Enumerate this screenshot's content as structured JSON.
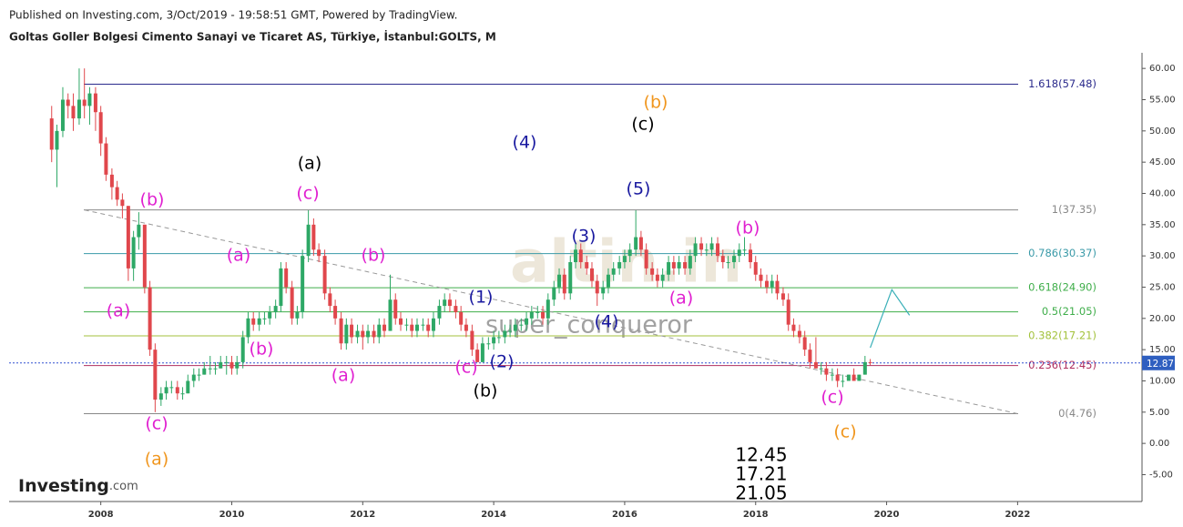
{
  "header": {
    "published": "Published on Investing.com, 3/Oct/2019 - 19:58:51 GMT, Powered by TradingView.",
    "instrument": "Goltas Goller Bolgesi Cimento Sanayi ve Ticaret AS, Türkiye, İstanbul:GOLTS, M"
  },
  "chart_data": {
    "type": "candlestick",
    "x": [
      2007.25,
      2007.33,
      2007.42,
      2007.5,
      2007.58,
      2007.67,
      2007.75,
      2007.83,
      2007.92,
      2008,
      2008.08,
      2008.17,
      2008.25,
      2008.33,
      2008.42,
      2008.5,
      2008.58,
      2008.67,
      2008.75,
      2008.83,
      2008.92,
      2009,
      2009.08,
      2009.17,
      2009.25,
      2009.33,
      2009.42,
      2009.5,
      2009.58,
      2009.67,
      2009.75,
      2009.83,
      2009.92,
      2010,
      2010.08,
      2010.17,
      2010.25,
      2010.33,
      2010.42,
      2010.5,
      2010.58,
      2010.67,
      2010.75,
      2010.83,
      2010.92,
      2011,
      2011.08,
      2011.17,
      2011.25,
      2011.33,
      2011.42,
      2011.5,
      2011.58,
      2011.67,
      2011.75,
      2011.83,
      2011.92,
      2012,
      2012.08,
      2012.17,
      2012.25,
      2012.33,
      2012.42,
      2012.5,
      2012.58,
      2012.67,
      2012.75,
      2012.83,
      2012.92,
      2013,
      2013.08,
      2013.17,
      2013.25,
      2013.33,
      2013.42,
      2013.5,
      2013.58,
      2013.67,
      2013.75,
      2013.83,
      2013.92,
      2014,
      2014.08,
      2014.17,
      2014.25,
      2014.33,
      2014.42,
      2014.5,
      2014.58,
      2014.67,
      2014.75,
      2014.83,
      2014.92,
      2015,
      2015.08,
      2015.17,
      2015.25,
      2015.33,
      2015.42,
      2015.5,
      2015.58,
      2015.67,
      2015.75,
      2015.83,
      2015.92,
      2016,
      2016.08,
      2016.17,
      2016.25,
      2016.33,
      2016.42,
      2016.5,
      2016.58,
      2016.67,
      2016.75,
      2016.83,
      2016.92,
      2017,
      2017.08,
      2017.17,
      2017.25,
      2017.33,
      2017.42,
      2017.5,
      2017.58,
      2017.67,
      2017.75,
      2017.83,
      2017.92,
      2018,
      2018.08,
      2018.17,
      2018.25,
      2018.33,
      2018.42,
      2018.5,
      2018.58,
      2018.67,
      2018.75,
      2018.83,
      2018.92,
      2019,
      2019.08,
      2019.17,
      2019.25,
      2019.33,
      2019.42,
      2019.5,
      2019.58,
      2019.67,
      2019.75
    ],
    "ohlc": [
      [
        52,
        54,
        45,
        47
      ],
      [
        47,
        51,
        41,
        50
      ],
      [
        50,
        57,
        49,
        55
      ],
      [
        55,
        56,
        52,
        54
      ],
      [
        54,
        56,
        50,
        52
      ],
      [
        52,
        60,
        51,
        55
      ],
      [
        55,
        60,
        52,
        54
      ],
      [
        54,
        57,
        51,
        56
      ],
      [
        56,
        57,
        50,
        53
      ],
      [
        53,
        54,
        46,
        48
      ],
      [
        48,
        49,
        42,
        43
      ],
      [
        43,
        44,
        39,
        41
      ],
      [
        41,
        42,
        38,
        39
      ],
      [
        39,
        40,
        36,
        38
      ],
      [
        38,
        38,
        26,
        28
      ],
      [
        28,
        34,
        26,
        33
      ],
      [
        33,
        37,
        31,
        35
      ],
      [
        35,
        35,
        24,
        25
      ],
      [
        25,
        26,
        14,
        15
      ],
      [
        15,
        16,
        5,
        7
      ],
      [
        7,
        9,
        6,
        8
      ],
      [
        8,
        10,
        7,
        9
      ],
      [
        9,
        10,
        8,
        9
      ],
      [
        9,
        10,
        7,
        8
      ],
      [
        8,
        9,
        7,
        8
      ],
      [
        8,
        11,
        8,
        10
      ],
      [
        10,
        12,
        9,
        11
      ],
      [
        11,
        12,
        10,
        11
      ],
      [
        11,
        13,
        11,
        12
      ],
      [
        12,
        14,
        11,
        12
      ],
      [
        12,
        13,
        11,
        12
      ],
      [
        12,
        14,
        12,
        13
      ],
      [
        13,
        14,
        11,
        13
      ],
      [
        13,
        14,
        11,
        12
      ],
      [
        12,
        14,
        11,
        13
      ],
      [
        13,
        18,
        12,
        17
      ],
      [
        17,
        21,
        16,
        20
      ],
      [
        20,
        21,
        18,
        19
      ],
      [
        19,
        21,
        18,
        20
      ],
      [
        20,
        21,
        19,
        20
      ],
      [
        20,
        22,
        19,
        21
      ],
      [
        21,
        23,
        20,
        22
      ],
      [
        22,
        29,
        21,
        28
      ],
      [
        28,
        29,
        24,
        25
      ],
      [
        25,
        26,
        19,
        20
      ],
      [
        20,
        22,
        19,
        21
      ],
      [
        21,
        31,
        20,
        30
      ],
      [
        30,
        37.3,
        29,
        35
      ],
      [
        35,
        36,
        30,
        31
      ],
      [
        31,
        32,
        29,
        30
      ],
      [
        30,
        31,
        23,
        24
      ],
      [
        24,
        25,
        21,
        22
      ],
      [
        22,
        23,
        19,
        20
      ],
      [
        20,
        21,
        15,
        16
      ],
      [
        16,
        20,
        15,
        19
      ],
      [
        19,
        20,
        16,
        17
      ],
      [
        17,
        19,
        16,
        18
      ],
      [
        18,
        19,
        15,
        17
      ],
      [
        17,
        19,
        16,
        18
      ],
      [
        18,
        19,
        16,
        17
      ],
      [
        17,
        20,
        16,
        19
      ],
      [
        19,
        20,
        17,
        18
      ],
      [
        18,
        27,
        18,
        23
      ],
      [
        23,
        24,
        19,
        20
      ],
      [
        20,
        21,
        18,
        19
      ],
      [
        19,
        20,
        18,
        19
      ],
      [
        19,
        20,
        17,
        18
      ],
      [
        18,
        20,
        17,
        19
      ],
      [
        19,
        20,
        18,
        19
      ],
      [
        19,
        20,
        17,
        18
      ],
      [
        18,
        21,
        17,
        20
      ],
      [
        20,
        23,
        19,
        22
      ],
      [
        22,
        24,
        21,
        23
      ],
      [
        23,
        24,
        21,
        22
      ],
      [
        22,
        23,
        20,
        21
      ],
      [
        21,
        22,
        18,
        19
      ],
      [
        19,
        20,
        17,
        18
      ],
      [
        18,
        19,
        14,
        15
      ],
      [
        15,
        16,
        13,
        13
      ],
      [
        13,
        17,
        13,
        16
      ],
      [
        16,
        17,
        15,
        16
      ],
      [
        16,
        18,
        15,
        17
      ],
      [
        17,
        18,
        16,
        17
      ],
      [
        17,
        19,
        16,
        18
      ],
      [
        18,
        19,
        17,
        18
      ],
      [
        18,
        20,
        17,
        19
      ],
      [
        19,
        20,
        18,
        19
      ],
      [
        19,
        21,
        18,
        20
      ],
      [
        20,
        22,
        19,
        21
      ],
      [
        21,
        22,
        20,
        21
      ],
      [
        21,
        22,
        19,
        20
      ],
      [
        20,
        24,
        19,
        23
      ],
      [
        23,
        26,
        22,
        25
      ],
      [
        25,
        28,
        24,
        27
      ],
      [
        27,
        28,
        23,
        24
      ],
      [
        24,
        30,
        23,
        29
      ],
      [
        29,
        32,
        28,
        31
      ],
      [
        31,
        32,
        28,
        29
      ],
      [
        29,
        30,
        27,
        28
      ],
      [
        28,
        29,
        25,
        26
      ],
      [
        26,
        27,
        22,
        24
      ],
      [
        24,
        26,
        23,
        25
      ],
      [
        25,
        28,
        24,
        27
      ],
      [
        27,
        29,
        26,
        28
      ],
      [
        28,
        30,
        27,
        29
      ],
      [
        29,
        31,
        28,
        30
      ],
      [
        30,
        32,
        29,
        31
      ],
      [
        31,
        37.3,
        30,
        33
      ],
      [
        33,
        34,
        30,
        31
      ],
      [
        31,
        32,
        27,
        28
      ],
      [
        28,
        29,
        26,
        27
      ],
      [
        27,
        28,
        25,
        26
      ],
      [
        26,
        28,
        25,
        27
      ],
      [
        27,
        30,
        26,
        29
      ],
      [
        29,
        30,
        27,
        28
      ],
      [
        28,
        30,
        27,
        29
      ],
      [
        29,
        30,
        27,
        28
      ],
      [
        28,
        31,
        27,
        30
      ],
      [
        30,
        33,
        29,
        32
      ],
      [
        32,
        33,
        30,
        31
      ],
      [
        31,
        32,
        30,
        31
      ],
      [
        31,
        33,
        30,
        32
      ],
      [
        32,
        33,
        29,
        30
      ],
      [
        30,
        31,
        28,
        29
      ],
      [
        29,
        30,
        28,
        29
      ],
      [
        29,
        31,
        28,
        30
      ],
      [
        30,
        32,
        29,
        31
      ],
      [
        31,
        33,
        30,
        31
      ],
      [
        31,
        32,
        28,
        29
      ],
      [
        29,
        30,
        26,
        27
      ],
      [
        27,
        28,
        25,
        26
      ],
      [
        26,
        27,
        24,
        25
      ],
      [
        25,
        27,
        24,
        26
      ],
      [
        26,
        27,
        23,
        24
      ],
      [
        24,
        25,
        22,
        23
      ],
      [
        23,
        24,
        18,
        19
      ],
      [
        19,
        20,
        17,
        18
      ],
      [
        18,
        19,
        16,
        17
      ],
      [
        17,
        18,
        14,
        15
      ],
      [
        15,
        16,
        12,
        13
      ],
      [
        13,
        17,
        12,
        12
      ],
      [
        12,
        13,
        11,
        12
      ],
      [
        12,
        13,
        10,
        11
      ],
      [
        11,
        12,
        10,
        11
      ],
      [
        11,
        12,
        9,
        10
      ],
      [
        10,
        11,
        9,
        10
      ],
      [
        10,
        11,
        10,
        11
      ],
      [
        11,
        12,
        10,
        10
      ],
      [
        10,
        11,
        10,
        11
      ],
      [
        11,
        14,
        11,
        13
      ],
      [
        13,
        13.5,
        12.5,
        12.87
      ]
    ],
    "up_color": "#2ea866",
    "down_color": "#e0474c",
    "xlim": [
      2006.6,
      2023.9
    ],
    "xticks": [
      2008,
      2010,
      2012,
      2014,
      2016,
      2018,
      2020,
      2022
    ],
    "ylim": [
      -9.3,
      62.5
    ],
    "yticks": [
      {
        "value": -5,
        "label": "-5.00"
      },
      {
        "value": 0,
        "label": "0.00"
      },
      {
        "value": 5,
        "label": "5.00"
      },
      {
        "value": 10,
        "label": "10.00"
      },
      {
        "value": 15,
        "label": "15.00"
      },
      {
        "value": 20,
        "label": "20.00"
      },
      {
        "value": 25,
        "label": "25.00"
      },
      {
        "value": 30,
        "label": "30.00"
      },
      {
        "value": 35,
        "label": "35.00"
      },
      {
        "value": 40,
        "label": "40.00"
      },
      {
        "value": 45,
        "label": "45.00"
      },
      {
        "value": 50,
        "label": "50.00"
      },
      {
        "value": 55,
        "label": "55.00"
      },
      {
        "value": 60,
        "label": "60.00"
      }
    ],
    "last_price": 12.87,
    "fib_levels": [
      {
        "value": 57.48,
        "label": "1.618(57.48)",
        "color": "#2a2a8c"
      },
      {
        "value": 37.35,
        "label": "1(37.35)",
        "color": "#888888"
      },
      {
        "value": 30.37,
        "label": "0.786(30.37)",
        "color": "#3a9aa8"
      },
      {
        "value": 24.9,
        "label": "0.618(24.90)",
        "color": "#3fae4a"
      },
      {
        "value": 21.05,
        "label": "0.5(21.05)",
        "color": "#3fae4a"
      },
      {
        "value": 17.21,
        "label": "0.382(17.21)",
        "color": "#a3c23c"
      },
      {
        "value": 12.45,
        "label": "0.236(12.45)",
        "color": "#b03060"
      },
      {
        "value": 4.76,
        "label": "0(4.76)",
        "color": "#888888"
      }
    ],
    "trendline": {
      "x": [
        2007.75,
        2022
      ],
      "y": [
        37.35,
        4.76
      ]
    },
    "projection": {
      "x": [
        2019.75,
        2020.08,
        2020.35
      ],
      "y": [
        15.3,
        24.6,
        20.5
      ],
      "color": "#3ab0b8"
    },
    "annotations": [
      {
        "text": "(b)",
        "color": "#e020d0"
      },
      {
        "text": "(a)",
        "color": "#e020d0"
      },
      {
        "text": "(c)",
        "color": "#e020d0"
      },
      {
        "text": "(a)",
        "color": "#f0961e"
      },
      {
        "text": "(a)",
        "color": "#e020d0"
      },
      {
        "text": "(b)",
        "color": "#e020d0"
      },
      {
        "text": "(c)",
        "color": "#e020d0"
      },
      {
        "text": "(a)",
        "color": "#000000"
      },
      {
        "text": "(a)",
        "color": "#e020d0"
      },
      {
        "text": "(b)",
        "color": "#e020d0"
      },
      {
        "text": "(1)",
        "color": "#1a1aa0"
      },
      {
        "text": "(c)",
        "color": "#e020d0"
      },
      {
        "text": "(2)",
        "color": "#1a1aa0"
      },
      {
        "text": "(b)",
        "color": "#000000"
      },
      {
        "text": "(4)",
        "color": "#1a1aa0"
      },
      {
        "text": "(3)",
        "color": "#1a1aa0"
      },
      {
        "text": "(4)",
        "color": "#1a1aa0"
      },
      {
        "text": "(5)",
        "color": "#1a1aa0"
      },
      {
        "text": "(c)",
        "color": "#000000"
      },
      {
        "text": "(b)",
        "color": "#f0961e"
      },
      {
        "text": "(a)",
        "color": "#e020d0"
      },
      {
        "text": "(b)",
        "color": "#e020d0"
      },
      {
        "text": "(c)",
        "color": "#e020d0"
      },
      {
        "text": "(c)",
        "color": "#f0961e"
      }
    ],
    "notes": [
      "12.45",
      "17.21",
      "21.05"
    ],
    "watermarks": [
      "altin.in",
      "super_conqueror"
    ]
  },
  "brand": {
    "name": "Investing",
    "suffix": ".com"
  }
}
